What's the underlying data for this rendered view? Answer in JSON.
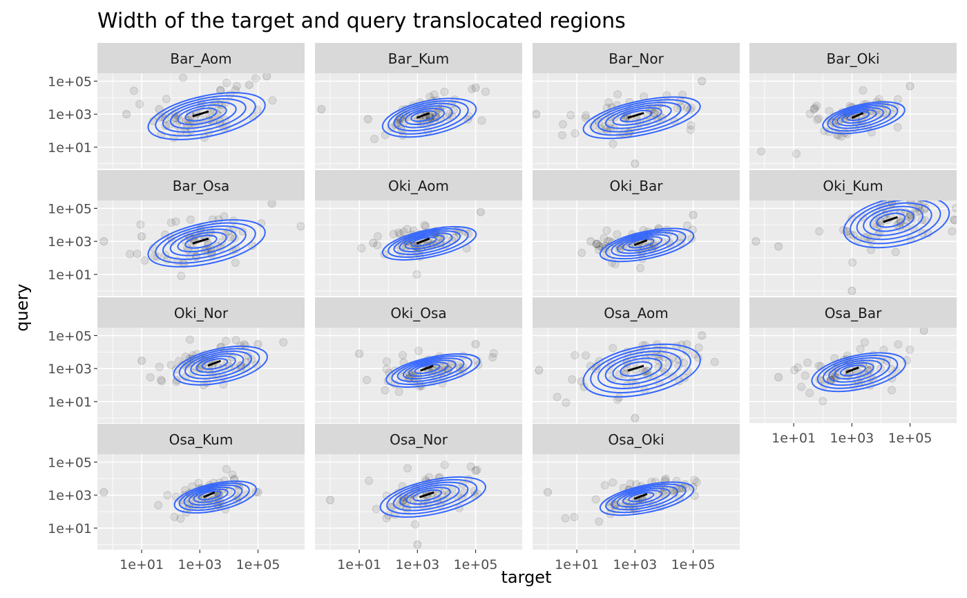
{
  "chart_data": {
    "type": "scatter",
    "title": "Width of the target and query translocated regions",
    "xlabel": "target",
    "ylabel": "query",
    "x_scale": "log10",
    "y_scale": "log10",
    "xlim": [
      0.3,
      4000000
    ],
    "ylim": [
      0.5,
      300000
    ],
    "x_tick_values": [
      10,
      1000,
      100000
    ],
    "x_tick_labels": [
      "1e+01",
      "1e+03",
      "1e+05"
    ],
    "y_tick_values": [
      10,
      1000,
      100000
    ],
    "y_tick_labels": [
      "1e+01",
      "1e+03",
      "1e+05"
    ],
    "grid": true,
    "layers": [
      "points",
      "2d density contours"
    ],
    "colors": {
      "panel_background": "#ebebeb",
      "strip_background": "#d9d9d9",
      "gridline": "#ffffff",
      "points": "#000000",
      "contour": "#3366ff"
    },
    "facets": [
      {
        "name": "Bar_Aom",
        "center": [
          1000,
          1000
        ],
        "spread": [
          1.0,
          0.6
        ],
        "outliers": [
          [
            200000,
            200000
          ],
          [
            50000,
            60000
          ],
          [
            3,
            1000
          ],
          [
            40,
            2000
          ]
        ]
      },
      {
        "name": "Bar_Kum",
        "center": [
          1500,
          800
        ],
        "spread": [
          0.8,
          0.5
        ],
        "outliers": [
          [
            0.5,
            2000
          ],
          [
            100000,
            40000
          ],
          [
            20,
            500
          ]
        ]
      },
      {
        "name": "Bar_Nor",
        "center": [
          1000,
          800
        ],
        "spread": [
          1.0,
          0.5
        ],
        "outliers": [
          [
            0.4,
            1000
          ],
          [
            200000,
            100000
          ],
          [
            1000,
            1
          ]
        ]
      },
      {
        "name": "Bar_Oki",
        "center": [
          1500,
          800
        ],
        "spread": [
          0.7,
          0.4
        ],
        "outliers": [
          [
            100000,
            50000
          ],
          [
            50,
            2000
          ]
        ]
      },
      {
        "name": "Bar_Osa",
        "center": [
          1000,
          1000
        ],
        "spread": [
          1.0,
          0.6
        ],
        "outliers": [
          [
            300000,
            200000
          ],
          [
            0.5,
            1000
          ],
          [
            10,
            2000
          ]
        ]
      },
      {
        "name": "Oki_Aom",
        "center": [
          1500,
          1000
        ],
        "spread": [
          0.8,
          0.4
        ],
        "outliers": [
          [
            150000,
            60000
          ],
          [
            30,
            800
          ]
        ]
      },
      {
        "name": "Oki_Bar",
        "center": [
          1500,
          800
        ],
        "spread": [
          0.8,
          0.4
        ],
        "outliers": [
          [
            100000,
            40000
          ],
          [
            30,
            1000
          ]
        ]
      },
      {
        "name": "Oki_Kum",
        "center": [
          20000,
          20000
        ],
        "spread": [
          0.9,
          0.7
        ],
        "outliers": [
          [
            0.5,
            1000
          ],
          [
            1000,
            1
          ],
          [
            3,
            500
          ]
        ]
      },
      {
        "name": "Oki_Nor",
        "center": [
          3000,
          2000
        ],
        "spread": [
          0.8,
          0.5
        ],
        "outliers": [
          [
            10,
            3000
          ],
          [
            100000,
            30000
          ]
        ]
      },
      {
        "name": "Oki_Osa",
        "center": [
          2000,
          1000
        ],
        "spread": [
          0.8,
          0.4
        ],
        "outliers": [
          [
            10,
            8000
          ],
          [
            100000,
            30000
          ]
        ]
      },
      {
        "name": "Osa_Aom",
        "center": [
          1000,
          1000
        ],
        "spread": [
          1.0,
          0.7
        ],
        "outliers": [
          [
            0.5,
            800
          ],
          [
            1000,
            1
          ],
          [
            200000,
            100000
          ]
        ]
      },
      {
        "name": "Osa_Bar",
        "center": [
          1000,
          800
        ],
        "spread": [
          0.8,
          0.5
        ],
        "outliers": [
          [
            300000,
            200000
          ],
          [
            3,
            300
          ]
        ]
      },
      {
        "name": "Osa_Kum",
        "center": [
          2000,
          1000
        ],
        "spread": [
          0.7,
          0.4
        ],
        "outliers": [
          [
            0.5,
            1500
          ],
          [
            100000,
            1500
          ]
        ]
      },
      {
        "name": "Osa_Nor",
        "center": [
          2000,
          1000
        ],
        "spread": [
          0.9,
          0.5
        ],
        "outliers": [
          [
            1,
            500
          ],
          [
            100000,
            30000
          ],
          [
            1000,
            1
          ]
        ]
      },
      {
        "name": "Osa_Oki",
        "center": [
          1500,
          800
        ],
        "spread": [
          0.8,
          0.4
        ],
        "outliers": [
          [
            1,
            1500
          ],
          [
            100000,
            3000
          ]
        ]
      }
    ]
  }
}
